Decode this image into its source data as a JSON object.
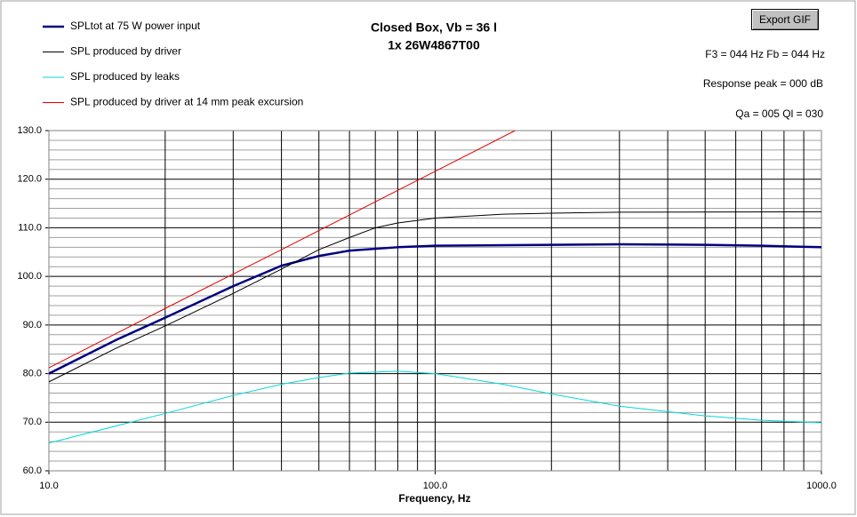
{
  "button": "Export GIF",
  "chart_data": {
    "type": "line",
    "title": "Closed Box, Vb = 36 l",
    "subtitle": "1x 26W4867T00",
    "x_label": "Frequency, Hz",
    "x_log": true,
    "grid": true,
    "annotations": [
      "F3 = 044 Hz  Fb = 044 Hz",
      "Response peak = 000 dB",
      "Qa = 005  Ql = 030"
    ],
    "xlim": [
      10,
      1000
    ],
    "xticks": [
      {
        "value": 10,
        "label": "10.0"
      },
      {
        "value": 100,
        "label": "100.0"
      },
      {
        "value": 1000,
        "label": "1000.0"
      }
    ],
    "xminor": [
      20,
      30,
      40,
      50,
      60,
      70,
      80,
      90,
      200,
      300,
      400,
      500,
      600,
      700,
      800,
      900
    ],
    "ylim": [
      60,
      130
    ],
    "yticks": [
      {
        "value": 60,
        "label": "60.0"
      },
      {
        "value": 70,
        "label": "70.0"
      },
      {
        "value": 80,
        "label": "80.0"
      },
      {
        "value": 90,
        "label": "90.0"
      },
      {
        "value": 100,
        "label": "100.0"
      },
      {
        "value": 110,
        "label": "110.0"
      },
      {
        "value": 120,
        "label": "120.0"
      },
      {
        "value": 130,
        "label": "130.0"
      }
    ],
    "yminor": [
      62,
      64,
      66,
      68,
      72,
      74,
      76,
      78,
      82,
      84,
      86,
      88,
      92,
      94,
      96,
      98,
      102,
      104,
      106,
      108,
      112,
      114,
      116,
      118,
      122,
      124,
      126,
      128
    ],
    "series": [
      {
        "name": "SPLtot at 75 W power input",
        "color": "#000080",
        "line_width": 2.5,
        "x": [
          10,
          15,
          20,
          30,
          40,
          50,
          60,
          80,
          100,
          200,
          300,
          500,
          700,
          1000
        ],
        "values": [
          80,
          87,
          91.5,
          98,
          102.2,
          104.2,
          105.3,
          106,
          106.3,
          106.5,
          106.6,
          106.5,
          106.3,
          106
        ]
      },
      {
        "name": "SPL produced by driver",
        "color": "#000000",
        "line_width": 1,
        "x": [
          10,
          15,
          20,
          30,
          40,
          50,
          60,
          70,
          80,
          100,
          150,
          200,
          300,
          1000
        ],
        "values": [
          78.3,
          85.3,
          89.8,
          96.5,
          101.5,
          105.5,
          108,
          110,
          111,
          112,
          112.8,
          113,
          113.2,
          113.3
        ]
      },
      {
        "name": "SPL produced by leaks",
        "color": "#00d8d8",
        "line_width": 1,
        "x": [
          10,
          20,
          30,
          40,
          50,
          60,
          80,
          100,
          150,
          200,
          300,
          500,
          700,
          1000
        ],
        "values": [
          65.7,
          71.8,
          75.5,
          77.8,
          79.2,
          80.1,
          80.5,
          80,
          77.8,
          75.8,
          73.3,
          71.3,
          70.4,
          69.9
        ]
      },
      {
        "name": "SPL produced by driver at 14 mm peak excursion",
        "color": "#e00000",
        "line_width": 1,
        "x": [
          10,
          20,
          40,
          80,
          161
        ],
        "values": [
          81.2,
          93.4,
          105.5,
          117.7,
          130
        ]
      }
    ]
  }
}
